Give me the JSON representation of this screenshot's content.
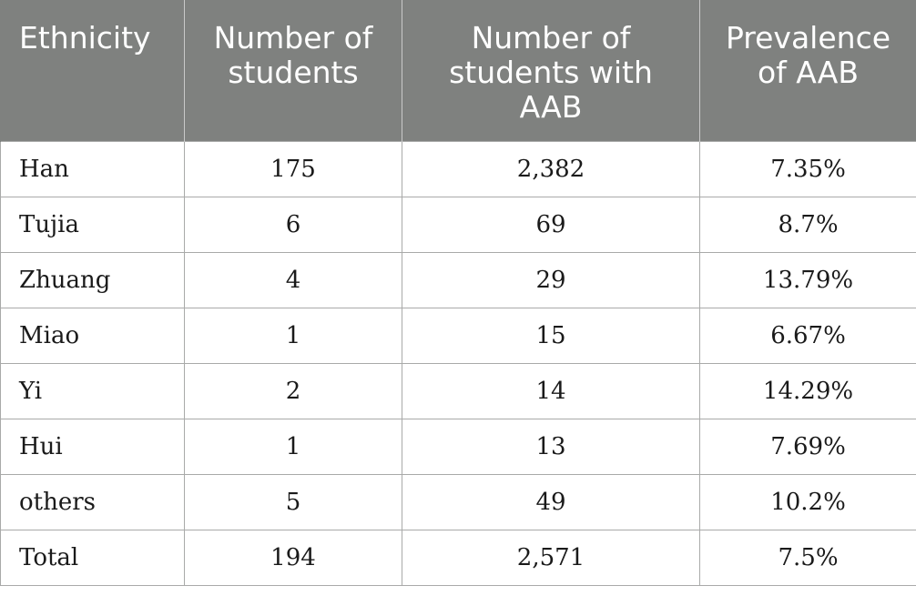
{
  "table": {
    "headers": [
      "Ethnicity",
      "Number of students",
      "Number of students with AAB",
      "Prevalence of AAB"
    ],
    "rows": [
      [
        "Han",
        "175",
        "2,382",
        "7.35%"
      ],
      [
        "Tujia",
        "6",
        "69",
        "8.7%"
      ],
      [
        "Zhuang",
        "4",
        "29",
        "13.79%"
      ],
      [
        "Miao",
        "1",
        "15",
        "6.67%"
      ],
      [
        "Yi",
        "2",
        "14",
        "14.29%"
      ],
      [
        "Hui",
        "1",
        "13",
        "7.69%"
      ],
      [
        "others",
        "5",
        "49",
        "10.2%"
      ],
      [
        "Total",
        "194",
        "2,571",
        "7.5%"
      ]
    ],
    "header_bg": "#7f817f",
    "header_text_color": "#ffffff",
    "border_color": "#a9aaa9"
  }
}
